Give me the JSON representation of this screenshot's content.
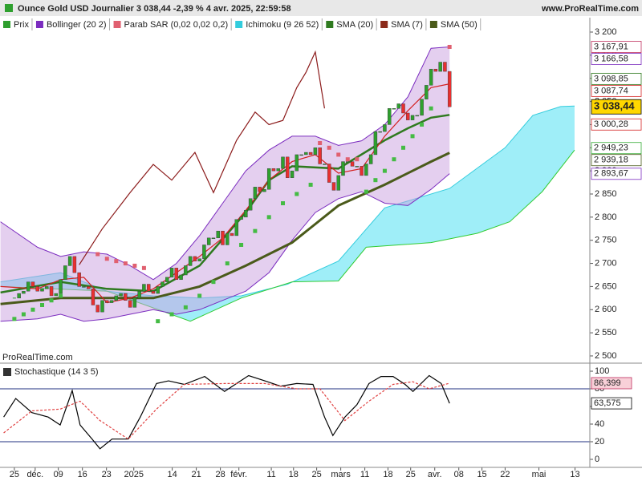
{
  "header": {
    "title": "Ounce Gold USD Journalier 3 038,44 -2,39 % 4 avr. 2025, 22:59:58",
    "site": "www.ProRealTime.com"
  },
  "legend": [
    {
      "label": "Prix",
      "color": "#2e9e2e"
    },
    {
      "label": "Bollinger (20 2)",
      "color": "#7b2cbf"
    },
    {
      "label": "Parab SAR (0,02 0,02 0,2)",
      "color": "#e06070"
    },
    {
      "label": "Ichimoku (9 26 52)",
      "color": "#33ccdd"
    },
    {
      "label": "SMA (20)",
      "color": "#2f7a1f"
    },
    {
      "label": "SMA (7)",
      "color": "#8b2a1a"
    },
    {
      "label": "SMA (50)",
      "color": "#4a5a1a"
    }
  ],
  "watermark": "ProRealTime.com",
  "chart_data": [
    {
      "type": "candlestick",
      "up_color": "#2ea02e",
      "down_color": "#e83030",
      "x": [
        0,
        1,
        2,
        3,
        4,
        5,
        6,
        7,
        8,
        9,
        10,
        11,
        12,
        13,
        14,
        15,
        16,
        17,
        18,
        19,
        20,
        21,
        22,
        23,
        24,
        25,
        26,
        27,
        28,
        29,
        30,
        31,
        32,
        33,
        34,
        35,
        36,
        37,
        38,
        39,
        40,
        41,
        42,
        43,
        44,
        45,
        46,
        47,
        48,
        49,
        50,
        51,
        52,
        53,
        54,
        55,
        56,
        57,
        58,
        59,
        60,
        61,
        62,
        63,
        64,
        65,
        66,
        67,
        68,
        69,
        70,
        71,
        72,
        73,
        74,
        75,
        76,
        77,
        78,
        79,
        80,
        81,
        82,
        83,
        84,
        85,
        86,
        87,
        88,
        89,
        90,
        91,
        92,
        93,
        94
      ],
      "close": [
        2625,
        2635,
        2640,
        2660,
        2650,
        2640,
        2645,
        2650,
        2630,
        2635,
        2665,
        2695,
        2715,
        2680,
        2650,
        2650,
        2645,
        2610,
        2595,
        2620,
        2615,
        2620,
        2630,
        2635,
        2620,
        2605,
        2625,
        2640,
        2655,
        2640,
        2635,
        2650,
        2660,
        2670,
        2690,
        2665,
        2675,
        2695,
        2715,
        2705,
        2710,
        2740,
        2755,
        2755,
        2770,
        2740,
        2765,
        2760,
        2795,
        2800,
        2815,
        2840,
        2865,
        2855,
        2860,
        2905,
        2900,
        2905,
        2930,
        2885,
        2900,
        2935,
        2935,
        2940,
        2935,
        2950,
        2915,
        2915,
        2875,
        2858,
        2890,
        2920,
        2920,
        2910,
        2910,
        2890,
        2915,
        2935,
        2985,
        2985,
        3000,
        3035,
        3035,
        3045,
        3025,
        3010,
        3020,
        3020,
        3055,
        3085,
        3120,
        3115,
        3135,
        3115,
        3038.44
      ],
      "xlim": [
        -3.1,
        124.3
      ],
      "ylim": [
        2486.1,
        3231.2
      ],
      "yticks": [
        {
          "value": 2500,
          "label": "2 500"
        },
        {
          "value": 2550,
          "label": "2 550"
        },
        {
          "value": 2600,
          "label": "2 600"
        },
        {
          "value": 2650,
          "label": "2 650"
        },
        {
          "value": 2700,
          "label": "2 700"
        },
        {
          "value": 2750,
          "label": "2 750"
        },
        {
          "value": 2800,
          "label": "2 800"
        },
        {
          "value": 2850,
          "label": "2 850"
        },
        {
          "value": 2900,
          "label": "2 900"
        },
        {
          "value": 2950,
          "label": "2 950"
        },
        {
          "value": 3000,
          "label": "3 000"
        },
        {
          "value": 3050,
          "label": "3 050"
        },
        {
          "value": 3100,
          "label": "3 100"
        },
        {
          "value": 3150,
          "label": "3 150"
        },
        {
          "value": 3200,
          "label": "3 200"
        }
      ],
      "ichimoku": {
        "fill": "#7fe8f5",
        "span_a": {
          "color": "#33ccdd",
          "x": [
            -3,
            10,
            20,
            30,
            40,
            49,
            59,
            70,
            80,
            94,
            106,
            112,
            118,
            121
          ],
          "values": [
            2660,
            2680,
            2640,
            2630,
            2625,
            2630,
            2655,
            2705,
            2820,
            2862,
            2950,
            3020,
            3039,
            3040
          ]
        },
        "span_b": {
          "color": "#33cc33",
          "x": [
            -3,
            20,
            38,
            49,
            60,
            70,
            76,
            90,
            100,
            107,
            114,
            121
          ],
          "values": [
            2650,
            2640,
            2575,
            2625,
            2660,
            2662,
            2735,
            2745,
            2765,
            2790,
            2855,
            2945
          ]
        },
        "chikou": {
          "color": "#8b1a1a",
          "x": [
            14,
            19,
            25,
            30,
            34,
            39,
            43,
            48,
            52,
            55,
            58,
            61,
            63,
            65,
            67
          ],
          "values": [
            2697,
            2775,
            2853,
            2914,
            2880,
            2940,
            2853,
            2966,
            3027,
            3000,
            3009,
            3080,
            3113,
            3157,
            3035
          ]
        }
      },
      "bollinger": {
        "color": "#7b2cbf",
        "fill": "#c9a0e0",
        "x": [
          -3,
          5,
          10,
          15,
          20,
          25,
          30,
          35,
          40,
          45,
          50,
          55,
          60,
          65,
          70,
          75,
          80,
          85,
          90,
          94
        ],
        "upper": [
          2790,
          2735,
          2715,
          2725,
          2720,
          2695,
          2665,
          2700,
          2760,
          2830,
          2900,
          2945,
          2975,
          2975,
          2955,
          2965,
          3000,
          3060,
          3165,
          3168
        ],
        "lower": [
          2575,
          2580,
          2590,
          2575,
          2580,
          2590,
          2600,
          2590,
          2600,
          2620,
          2640,
          2680,
          2750,
          2810,
          2840,
          2855,
          2830,
          2825,
          2860,
          2894
        ]
      },
      "sma": [
        {
          "color": "#4a5a1a",
          "width": 3,
          "x": [
            -3,
            10,
            20,
            30,
            40,
            50,
            60,
            70,
            80,
            90,
            94
          ],
          "values": [
            2612,
            2625,
            2625,
            2625,
            2650,
            2695,
            2745,
            2825,
            2870,
            2920,
            2939
          ]
        },
        {
          "color": "#2f7a1f",
          "width": 2.5,
          "x": [
            -3,
            10,
            20,
            30,
            40,
            50,
            55,
            60,
            70,
            80,
            85,
            90,
            94
          ],
          "values": [
            2637,
            2660,
            2645,
            2640,
            2695,
            2810,
            2880,
            2910,
            2905,
            2966,
            2992,
            3015,
            3021
          ]
        },
        {
          "color": "#d42020",
          "width": 1.2,
          "x": [
            -3,
            5,
            10,
            15,
            20,
            25,
            30,
            35,
            40,
            45,
            50,
            55,
            60,
            65,
            70,
            75,
            80,
            85,
            90,
            94
          ],
          "values": [
            2650,
            2645,
            2665,
            2670,
            2615,
            2625,
            2645,
            2680,
            2715,
            2755,
            2815,
            2880,
            2920,
            2935,
            2895,
            2905,
            2975,
            3030,
            3080,
            3088
          ]
        }
      ],
      "sar": {
        "above": {
          "color": "#e06070",
          "x": [
            18,
            20,
            22,
            24,
            26,
            28,
            66,
            68,
            70,
            72,
            74,
            94
          ],
          "values": [
            2720,
            2710,
            2705,
            2700,
            2695,
            2690,
            2960,
            2950,
            2935,
            2925,
            2925,
            3168
          ]
        },
        "below": {
          "color": "#44bb44",
          "x": [
            0,
            2,
            4,
            6,
            8,
            10,
            31,
            34,
            37,
            40,
            43,
            46,
            49,
            52,
            55,
            58,
            61,
            64,
            76,
            78,
            80,
            82,
            84,
            86,
            88,
            90
          ],
          "values": [
            2580,
            2590,
            2600,
            2610,
            2620,
            2630,
            2575,
            2590,
            2605,
            2630,
            2660,
            2700,
            2740,
            2770,
            2800,
            2830,
            2850,
            2870,
            2855,
            2880,
            2900,
            2925,
            2950,
            2975,
            3000,
            3035
          ]
        }
      },
      "price_tags": [
        {
          "value": 3167.91,
          "label": "3 167,91",
          "color": "#c03060",
          "background": "#ffffff",
          "bold": false
        },
        {
          "value": 3166.58,
          "label": "3 166,58",
          "color": "#7b2cbf",
          "background": "#ffffff",
          "bold": false
        },
        {
          "value": 3098.85,
          "label": "3 098,85",
          "color": "#2f7a1f",
          "background": "#ffffff",
          "bold": false
        },
        {
          "value": 3087.74,
          "label": "3 087,74",
          "color": "#d42020",
          "background": "#ffffff",
          "bold": false
        },
        {
          "value": 3038.44,
          "label": "3 038,44",
          "color": "#000000",
          "background": "#ffd700",
          "bold": true
        },
        {
          "value": 3000.28,
          "label": "3 000,28",
          "color": "#d42020",
          "background": "#ffffff",
          "bold": false
        },
        {
          "value": 2949.23,
          "label": "2 949,23",
          "color": "#33aa33",
          "background": "#ffffff",
          "bold": false
        },
        {
          "value": 2939.18,
          "label": "2 939,18",
          "color": "#4a5a1a",
          "background": "#ffffff",
          "bold": false
        },
        {
          "value": 2893.67,
          "label": "2 893,67",
          "color": "#7b2cbf",
          "background": "#ffffff",
          "bold": false
        }
      ]
    },
    {
      "type": "line",
      "title": "Stochastique (14 3 5)",
      "xlim": [
        -3.1,
        124.3
      ],
      "ylim": [
        -9.1,
        107.3
      ],
      "yticks": [
        0,
        20,
        40,
        60,
        80,
        100
      ],
      "levels": [
        20,
        80
      ],
      "level_color": "#203080",
      "xticks": [
        {
          "value": 0,
          "label": "25"
        },
        {
          "value": 4.5,
          "label": "déc."
        },
        {
          "value": 9.5,
          "label": "09"
        },
        {
          "value": 14.7,
          "label": "16"
        },
        {
          "value": 19.9,
          "label": "23"
        },
        {
          "value": 25.8,
          "label": "2025"
        },
        {
          "value": 34.1,
          "label": "14"
        },
        {
          "value": 39.3,
          "label": "21"
        },
        {
          "value": 44.5,
          "label": "28"
        },
        {
          "value": 48.5,
          "label": "févr."
        },
        {
          "value": 55.5,
          "label": "11"
        },
        {
          "value": 60.3,
          "label": "18"
        },
        {
          "value": 65.3,
          "label": "25"
        },
        {
          "value": 70.5,
          "label": "mars"
        },
        {
          "value": 75.7,
          "label": "11"
        },
        {
          "value": 80.7,
          "label": "18"
        },
        {
          "value": 85.6,
          "label": "25"
        },
        {
          "value": 90.8,
          "label": "avr."
        },
        {
          "value": 96,
          "label": "08"
        },
        {
          "value": 101,
          "label": "15"
        },
        {
          "value": 106,
          "label": "22"
        },
        {
          "value": 113.3,
          "label": "mai"
        },
        {
          "value": 121.1,
          "label": "13"
        }
      ],
      "series": [
        {
          "color": "#000000",
          "dash": false,
          "x": [
            -2.3,
            0.3,
            3.8,
            7.3,
            9.9,
            12.5,
            14.2,
            16.8,
            18.5,
            21.1,
            24.6,
            27.2,
            30.7,
            33.3,
            36.7,
            41.1,
            45.4,
            48,
            50.6,
            54.1,
            57.5,
            61,
            64.5,
            67,
            68.8,
            71.4,
            74,
            76.6,
            79.2,
            81.8,
            84.4,
            86.1,
            89.6,
            92.2,
            94
          ],
          "values": [
            48,
            69,
            53,
            48,
            39,
            78,
            39,
            23,
            12,
            23,
            23,
            48,
            86,
            89,
            85,
            94,
            77,
            86,
            95,
            89,
            83,
            86,
            85,
            48,
            27,
            48,
            62,
            86,
            94,
            94,
            85,
            77,
            95,
            86,
            63.575
          ]
        },
        {
          "color": "#e04040",
          "dash": true,
          "x": [
            -2.3,
            3.8,
            9.9,
            14.2,
            18.5,
            24.6,
            30.7,
            36.7,
            45.4,
            54.1,
            61,
            66,
            71.4,
            76.6,
            81.8,
            86.1,
            89.6,
            94
          ],
          "values": [
            30,
            55,
            57,
            66,
            44,
            23,
            57,
            85,
            86,
            86,
            80,
            80,
            44,
            66,
            85,
            88,
            80,
            86.399
          ]
        }
      ],
      "value_labels": [
        {
          "value": 86.399,
          "label": "86,399",
          "color": "#c03060",
          "background": "#f8d0d8"
        },
        {
          "value": 63.575,
          "label": "63,575",
          "color": "#000000",
          "background": "#ffffff"
        }
      ]
    }
  ]
}
